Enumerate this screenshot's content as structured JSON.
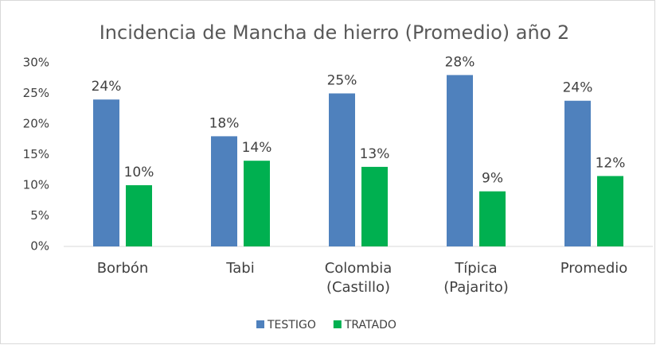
{
  "chart_data": {
    "type": "bar",
    "title": "Incidencia de Mancha de hierro (Promedio) año 2",
    "categories": [
      "Borbón",
      "Tabi",
      "Colombia (Castillo)",
      "Típica (Pajarito)",
      "Promedio"
    ],
    "series": [
      {
        "name": "TESTIGO",
        "color": "#4f81bd",
        "values": [
          24,
          18,
          25,
          28,
          23.8
        ],
        "value_labels": [
          "24%",
          "18%",
          "25%",
          "28%",
          "24%"
        ]
      },
      {
        "name": "TRATADO",
        "color": "#00b050",
        "values": [
          10,
          14,
          13,
          9,
          11.5
        ],
        "value_labels": [
          "10%",
          "14%",
          "13%",
          "9%",
          "12%"
        ]
      }
    ],
    "ylim": [
      0,
      30
    ],
    "yticks": [
      {
        "value": 0,
        "label": "0%"
      },
      {
        "value": 5,
        "label": "5%"
      },
      {
        "value": 10,
        "label": "10%"
      },
      {
        "value": 15,
        "label": "15%"
      },
      {
        "value": 20,
        "label": "20%"
      },
      {
        "value": 25,
        "label": "25%"
      },
      {
        "value": 30,
        "label": "30%"
      }
    ],
    "grid": false,
    "legend": "bottom"
  }
}
